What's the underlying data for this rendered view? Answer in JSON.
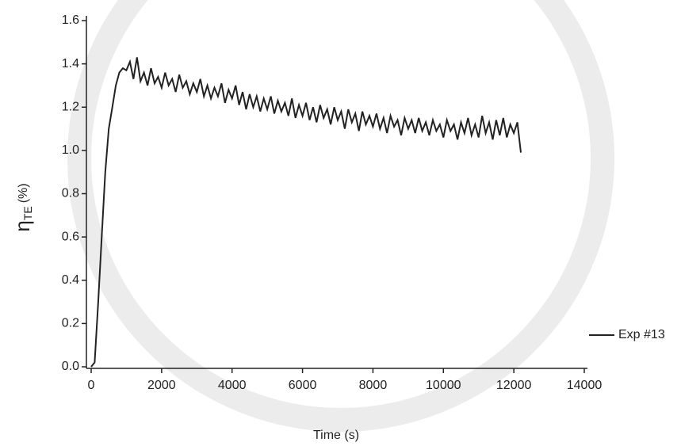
{
  "chart_data": {
    "type": "line",
    "x_label": "Time (s)",
    "y_label": {
      "symbol": "η",
      "subscript": "TE",
      "unit": "(%)"
    },
    "xlim": [
      0,
      14000
    ],
    "xticks": [
      0,
      2000,
      4000,
      6000,
      8000,
      10000,
      12000,
      14000
    ],
    "ylim": [
      0,
      1.6
    ],
    "yticks": [
      {
        "value": 0,
        "label": "0.0"
      },
      0.2,
      0.4,
      0.6,
      0.8,
      {
        "value": 1,
        "label": "1.0"
      },
      1.2,
      1.4,
      1.6
    ],
    "legend": "right",
    "series": [
      {
        "name": "Exp #13",
        "color": "#222222",
        "x": [
          0,
          100,
          200,
          300,
          400,
          500,
          600,
          700,
          800,
          900,
          1000,
          1100,
          1200,
          1300,
          1400,
          1500,
          1600,
          1700,
          1800,
          1900,
          2000,
          2100,
          2200,
          2300,
          2400,
          2500,
          2600,
          2700,
          2800,
          2900,
          3000,
          3100,
          3200,
          3300,
          3400,
          3500,
          3600,
          3700,
          3800,
          3900,
          4000,
          4100,
          4200,
          4300,
          4400,
          4500,
          4600,
          4700,
          4800,
          4900,
          5000,
          5100,
          5200,
          5300,
          5400,
          5500,
          5600,
          5700,
          5800,
          5900,
          6000,
          6100,
          6200,
          6300,
          6400,
          6500,
          6600,
          6700,
          6800,
          6900,
          7000,
          7100,
          7200,
          7300,
          7400,
          7500,
          7600,
          7700,
          7800,
          7900,
          8000,
          8100,
          8200,
          8300,
          8400,
          8500,
          8600,
          8700,
          8800,
          8900,
          9000,
          9100,
          9200,
          9300,
          9400,
          9500,
          9600,
          9700,
          9800,
          9900,
          10000,
          10100,
          10200,
          10300,
          10400,
          10500,
          10600,
          10700,
          10800,
          10900,
          11000,
          11100,
          11200,
          11300,
          11400,
          11500,
          11600,
          11700,
          11800,
          11900,
          12000,
          12100,
          12200
        ],
        "values": [
          0,
          0.02,
          0.3,
          0.6,
          0.9,
          1.1,
          1.2,
          1.3,
          1.36,
          1.38,
          1.37,
          1.41,
          1.33,
          1.43,
          1.32,
          1.36,
          1.3,
          1.38,
          1.31,
          1.34,
          1.29,
          1.36,
          1.3,
          1.33,
          1.27,
          1.35,
          1.29,
          1.32,
          1.26,
          1.31,
          1.27,
          1.33,
          1.25,
          1.3,
          1.24,
          1.29,
          1.25,
          1.31,
          1.22,
          1.28,
          1.24,
          1.3,
          1.21,
          1.27,
          1.19,
          1.26,
          1.2,
          1.25,
          1.18,
          1.24,
          1.19,
          1.25,
          1.17,
          1.23,
          1.18,
          1.22,
          1.16,
          1.24,
          1.15,
          1.21,
          1.16,
          1.22,
          1.14,
          1.2,
          1.13,
          1.21,
          1.15,
          1.19,
          1.12,
          1.2,
          1.14,
          1.18,
          1.1,
          1.19,
          1.13,
          1.17,
          1.09,
          1.18,
          1.12,
          1.16,
          1.11,
          1.17,
          1.1,
          1.15,
          1.08,
          1.16,
          1.11,
          1.14,
          1.07,
          1.15,
          1.1,
          1.14,
          1.08,
          1.15,
          1.09,
          1.13,
          1.07,
          1.14,
          1.09,
          1.12,
          1.06,
          1.14,
          1.09,
          1.12,
          1.05,
          1.13,
          1.08,
          1.15,
          1.07,
          1.12,
          1.06,
          1.16,
          1.08,
          1.13,
          1.05,
          1.14,
          1.07,
          1.15,
          1.06,
          1.12,
          1.08,
          1.13,
          0.99
        ]
      }
    ]
  }
}
